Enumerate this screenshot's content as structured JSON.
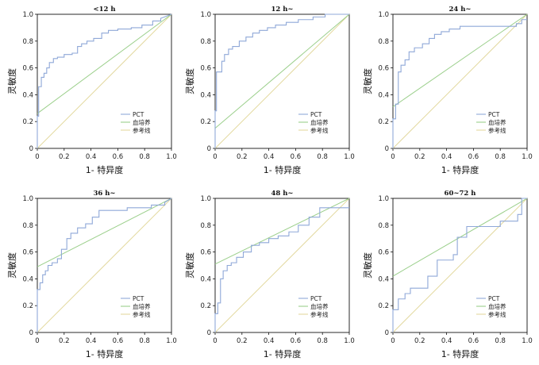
{
  "chart_data": [
    {
      "type": "line",
      "title": "<12 h",
      "xlabel": "1- 特异度",
      "ylabel": "灵敏度",
      "xlim": [
        0,
        1
      ],
      "ylim": [
        0,
        1
      ],
      "xticks": [
        "0",
        "0.2",
        "0.4",
        "0.6",
        "0.8",
        "1.0"
      ],
      "yticks": [
        "0",
        "0.2",
        "0.4",
        "0.6",
        "0.8",
        "1.0"
      ],
      "legend_position": "bottom-right",
      "series": [
        {
          "name": "PCT",
          "color": "#8fa8d8",
          "step": true,
          "x": [
            0,
            0,
            0.01,
            0.01,
            0.03,
            0.03,
            0.05,
            0.05,
            0.07,
            0.07,
            0.09,
            0.09,
            0.12,
            0.12,
            0.15,
            0.15,
            0.2,
            0.2,
            0.26,
            0.26,
            0.3,
            0.3,
            0.33,
            0.33,
            0.37,
            0.37,
            0.42,
            0.42,
            0.48,
            0.48,
            0.53,
            0.53,
            0.6,
            0.6,
            0.7,
            0.7,
            0.78,
            0.78,
            0.86,
            0.86,
            0.92,
            0.92,
            1.0
          ],
          "y": [
            0,
            0.24,
            0.24,
            0.46,
            0.46,
            0.53,
            0.53,
            0.56,
            0.56,
            0.6,
            0.6,
            0.64,
            0.64,
            0.67,
            0.67,
            0.68,
            0.68,
            0.7,
            0.7,
            0.71,
            0.71,
            0.76,
            0.76,
            0.78,
            0.78,
            0.8,
            0.8,
            0.82,
            0.82,
            0.86,
            0.86,
            0.88,
            0.88,
            0.89,
            0.89,
            0.9,
            0.9,
            0.92,
            0.92,
            0.95,
            0.95,
            0.97,
            1.0
          ]
        },
        {
          "name": "血培养",
          "color": "#9bcf8b",
          "step": false,
          "x": [
            0,
            1.0
          ],
          "y": [
            0.26,
            1.0
          ]
        },
        {
          "name": "参考线",
          "color": "#e3d9a0",
          "step": false,
          "x": [
            0,
            1.0
          ],
          "y": [
            0,
            1.0
          ]
        }
      ]
    },
    {
      "type": "line",
      "title": "12 h~",
      "xlabel": "1- 特异度",
      "ylabel": "灵敏度",
      "xlim": [
        0,
        1
      ],
      "ylim": [
        0,
        1
      ],
      "xticks": [
        "0",
        "0.2",
        "0.4",
        "0.6",
        "0.8",
        "1.0"
      ],
      "yticks": [
        "0",
        "0.2",
        "0.4",
        "0.6",
        "0.8",
        "1.0"
      ],
      "legend_position": "bottom-right",
      "series": [
        {
          "name": "PCT",
          "color": "#8fa8d8",
          "step": true,
          "x": [
            0,
            0,
            0.01,
            0.01,
            0.05,
            0.05,
            0.07,
            0.07,
            0.1,
            0.1,
            0.13,
            0.13,
            0.18,
            0.18,
            0.23,
            0.23,
            0.28,
            0.28,
            0.33,
            0.33,
            0.39,
            0.39,
            0.45,
            0.45,
            0.53,
            0.53,
            0.62,
            0.62,
            0.73,
            0.73,
            0.82,
            0.82,
            1.0
          ],
          "y": [
            0,
            0.28,
            0.28,
            0.57,
            0.57,
            0.65,
            0.65,
            0.7,
            0.7,
            0.74,
            0.74,
            0.76,
            0.76,
            0.8,
            0.8,
            0.83,
            0.83,
            0.86,
            0.86,
            0.88,
            0.88,
            0.9,
            0.9,
            0.92,
            0.92,
            0.94,
            0.94,
            0.96,
            0.96,
            0.98,
            0.98,
            1.0,
            1.0
          ]
        },
        {
          "name": "血培养",
          "color": "#9bcf8b",
          "step": false,
          "x": [
            0,
            1.0
          ],
          "y": [
            0.15,
            1.0
          ]
        },
        {
          "name": "参考线",
          "color": "#e3d9a0",
          "step": false,
          "x": [
            0,
            1.0
          ],
          "y": [
            0,
            1.0
          ]
        }
      ]
    },
    {
      "type": "line",
      "title": "24 h~",
      "xlabel": "1- 特异度",
      "ylabel": "灵敏度",
      "xlim": [
        0,
        1
      ],
      "ylim": [
        0,
        1
      ],
      "xticks": [
        "0",
        "0.2",
        "0.4",
        "0.6",
        "0.8",
        "1.0"
      ],
      "yticks": [
        "0",
        "0.2",
        "0.4",
        "0.6",
        "0.8",
        "1.0"
      ],
      "legend_position": "bottom-right",
      "series": [
        {
          "name": "PCT",
          "color": "#8fa8d8",
          "step": true,
          "x": [
            0,
            0,
            0.02,
            0.02,
            0.04,
            0.04,
            0.06,
            0.06,
            0.09,
            0.09,
            0.12,
            0.12,
            0.16,
            0.16,
            0.22,
            0.22,
            0.27,
            0.27,
            0.31,
            0.31,
            0.36,
            0.36,
            0.42,
            0.42,
            0.5,
            0.5,
            0.92,
            0.92,
            0.96,
            0.96,
            1.0
          ],
          "y": [
            0,
            0.22,
            0.22,
            0.33,
            0.33,
            0.57,
            0.57,
            0.62,
            0.62,
            0.66,
            0.66,
            0.72,
            0.72,
            0.75,
            0.75,
            0.78,
            0.78,
            0.82,
            0.82,
            0.85,
            0.85,
            0.87,
            0.87,
            0.89,
            0.89,
            0.91,
            0.91,
            0.93,
            0.93,
            0.96,
            0.96
          ]
        },
        {
          "name": "血培养",
          "color": "#9bcf8b",
          "step": false,
          "x": [
            0,
            1.0
          ],
          "y": [
            0.31,
            1.0
          ]
        },
        {
          "name": "参考线",
          "color": "#e3d9a0",
          "step": false,
          "x": [
            0,
            1.0
          ],
          "y": [
            0,
            1.0
          ]
        }
      ]
    },
    {
      "type": "line",
      "title": "36 h~",
      "xlabel": "1- 特异度",
      "ylabel": "灵敏度",
      "xlim": [
        0,
        1
      ],
      "ylim": [
        0,
        1
      ],
      "xticks": [
        "0",
        "0.2",
        "0.4",
        "0.6",
        "0.8",
        "1.0"
      ],
      "yticks": [
        "0",
        "0.2",
        "0.4",
        "0.6",
        "0.8",
        "1.0"
      ],
      "legend_position": "bottom-right",
      "series": [
        {
          "name": "PCT",
          "color": "#8fa8d8",
          "step": true,
          "x": [
            0,
            0,
            0.02,
            0.02,
            0.04,
            0.04,
            0.06,
            0.06,
            0.08,
            0.08,
            0.11,
            0.11,
            0.15,
            0.15,
            0.18,
            0.18,
            0.22,
            0.22,
            0.25,
            0.25,
            0.3,
            0.3,
            0.36,
            0.36,
            0.41,
            0.41,
            0.46,
            0.46,
            0.67,
            0.67,
            0.85,
            0.85,
            0.95,
            0.95,
            1.0
          ],
          "y": [
            0,
            0.32,
            0.32,
            0.37,
            0.37,
            0.43,
            0.43,
            0.46,
            0.46,
            0.5,
            0.5,
            0.52,
            0.52,
            0.55,
            0.55,
            0.62,
            0.62,
            0.7,
            0.7,
            0.74,
            0.74,
            0.78,
            0.78,
            0.81,
            0.81,
            0.86,
            0.86,
            0.91,
            0.91,
            0.93,
            0.93,
            0.95,
            0.95,
            0.97,
            1.0
          ]
        },
        {
          "name": "血培养",
          "color": "#9bcf8b",
          "step": false,
          "x": [
            0,
            1.0
          ],
          "y": [
            0.49,
            1.0
          ]
        },
        {
          "name": "参考线",
          "color": "#e3d9a0",
          "step": false,
          "x": [
            0,
            1.0
          ],
          "y": [
            0,
            1.0
          ]
        }
      ]
    },
    {
      "type": "line",
      "title": "48 h~",
      "xlabel": "1- 特异度",
      "ylabel": "灵敏度",
      "xlim": [
        0,
        1
      ],
      "ylim": [
        0,
        1
      ],
      "xticks": [
        "0",
        "0.2",
        "0.4",
        "0.6",
        "0.8",
        "1.0"
      ],
      "yticks": [
        "0",
        "0.2",
        "0.4",
        "0.6",
        "0.8",
        "1.0"
      ],
      "legend_position": "bottom-right",
      "series": [
        {
          "name": "PCT",
          "color": "#8fa8d8",
          "step": true,
          "x": [
            0,
            0,
            0.02,
            0.02,
            0.04,
            0.04,
            0.06,
            0.06,
            0.09,
            0.09,
            0.12,
            0.12,
            0.16,
            0.16,
            0.21,
            0.21,
            0.27,
            0.27,
            0.33,
            0.33,
            0.4,
            0.4,
            0.47,
            0.47,
            0.55,
            0.55,
            0.62,
            0.62,
            0.7,
            0.7,
            0.78,
            0.78,
            1.0
          ],
          "y": [
            0,
            0.14,
            0.14,
            0.22,
            0.22,
            0.4,
            0.4,
            0.46,
            0.46,
            0.5,
            0.5,
            0.52,
            0.52,
            0.56,
            0.56,
            0.6,
            0.6,
            0.65,
            0.65,
            0.67,
            0.67,
            0.7,
            0.7,
            0.72,
            0.72,
            0.75,
            0.75,
            0.8,
            0.8,
            0.86,
            0.86,
            0.93,
            0.93
          ]
        },
        {
          "name": "血培养",
          "color": "#9bcf8b",
          "step": false,
          "x": [
            0,
            1.0
          ],
          "y": [
            0.51,
            1.0
          ]
        },
        {
          "name": "参考线",
          "color": "#e3d9a0",
          "step": false,
          "x": [
            0,
            1.0
          ],
          "y": [
            0,
            1.0
          ]
        }
      ]
    },
    {
      "type": "line",
      "title": "60~72 h",
      "xlabel": "1- 特异度",
      "ylabel": "灵敏度",
      "xlim": [
        0,
        1
      ],
      "ylim": [
        0,
        1
      ],
      "xticks": [
        "0",
        "0.2",
        "0.4",
        "0.6",
        "0.8",
        "1.0"
      ],
      "yticks": [
        "0",
        "0.2",
        "0.4",
        "0.6",
        "0.8",
        "1.0"
      ],
      "legend_position": "bottom-right",
      "series": [
        {
          "name": "PCT",
          "color": "#8fa8d8",
          "step": true,
          "x": [
            0,
            0,
            0.04,
            0.04,
            0.09,
            0.09,
            0.13,
            0.13,
            0.26,
            0.26,
            0.33,
            0.33,
            0.45,
            0.45,
            0.48,
            0.48,
            0.55,
            0.55,
            0.65,
            0.65,
            0.8,
            0.8,
            0.93,
            0.93,
            0.96,
            0.96,
            1.0
          ],
          "y": [
            0,
            0.17,
            0.17,
            0.25,
            0.25,
            0.29,
            0.29,
            0.33,
            0.33,
            0.42,
            0.42,
            0.54,
            0.54,
            0.58,
            0.58,
            0.71,
            0.71,
            0.79,
            0.79,
            0.79,
            0.79,
            0.83,
            0.83,
            0.88,
            0.88,
            1.0,
            1.0
          ]
        },
        {
          "name": "血培养",
          "color": "#9bcf8b",
          "step": false,
          "x": [
            0,
            1.0
          ],
          "y": [
            0.42,
            1.0
          ]
        },
        {
          "name": "参考线",
          "color": "#e3d9a0",
          "step": false,
          "x": [
            0,
            1.0
          ],
          "y": [
            0,
            1.0
          ]
        }
      ]
    }
  ]
}
